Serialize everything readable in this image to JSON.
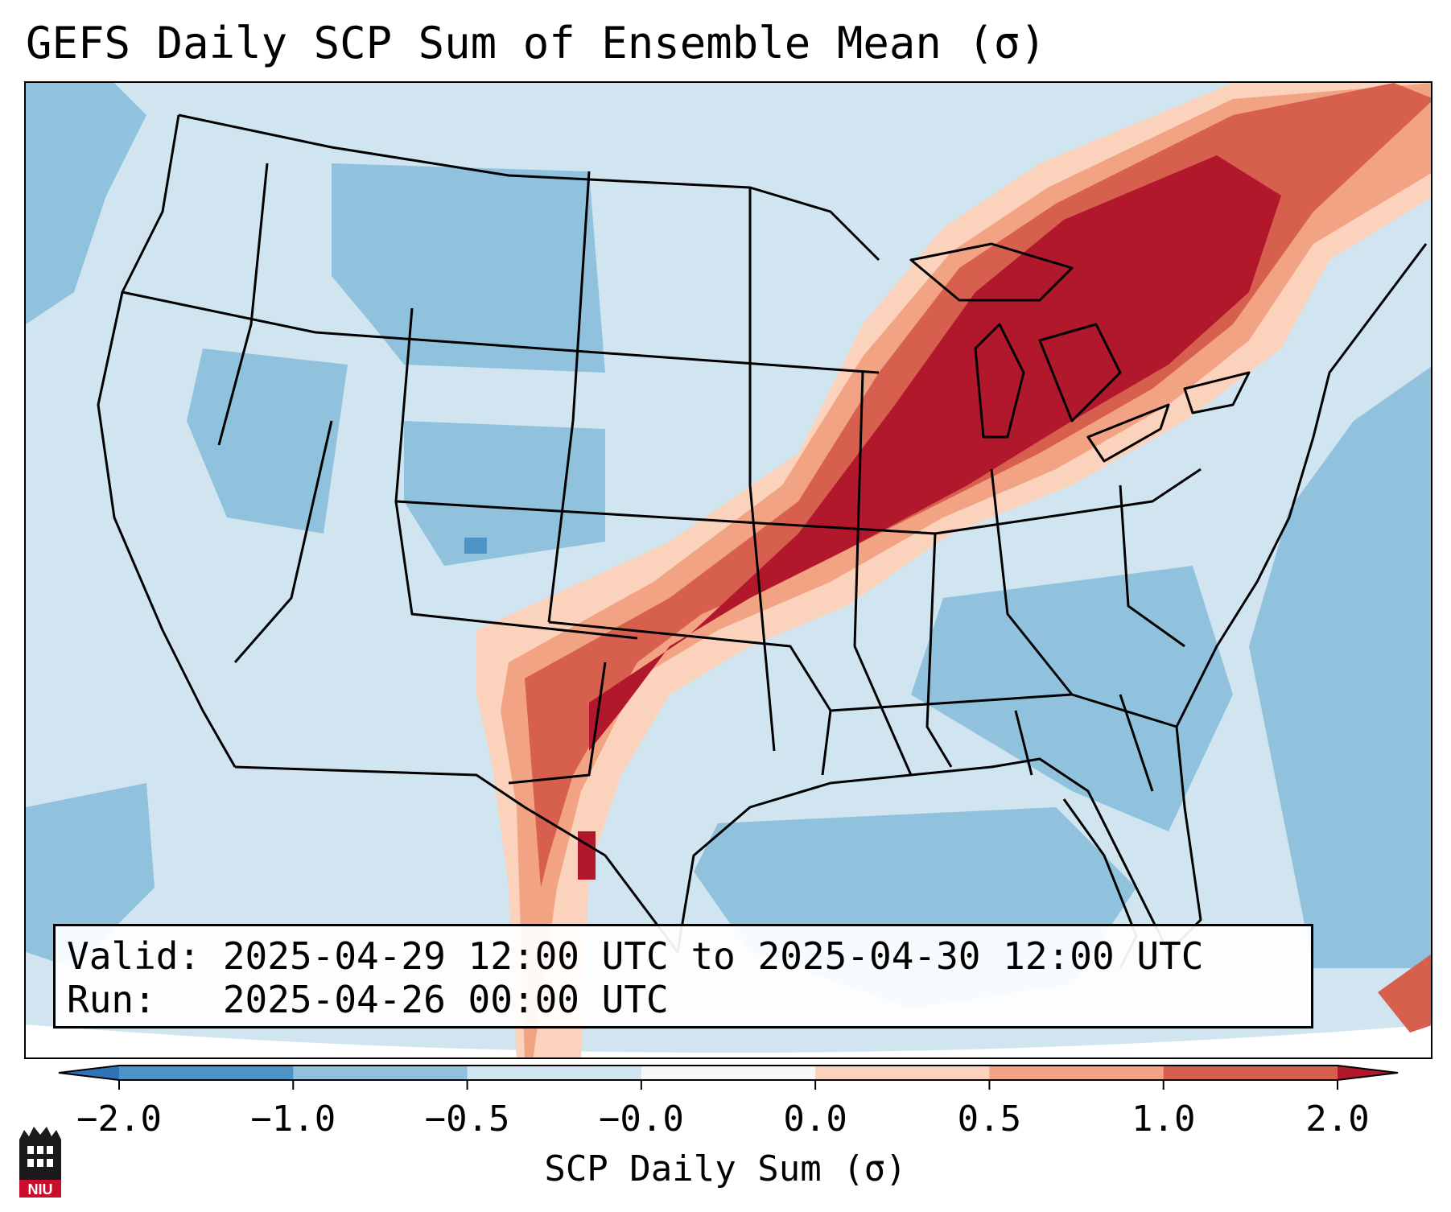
{
  "title": "GEFS Daily SCP Sum of Ensemble Mean (σ)",
  "info": {
    "valid": "Valid: 2025-04-29 12:00 UTC to 2025-04-30 12:00 UTC",
    "run": "Run:   2025-04-26 00:00 UTC"
  },
  "colorbar": {
    "label": "SCP Daily Sum (σ)",
    "ticks": [
      "−2.0",
      "−1.0",
      "−0.5",
      "−0.0",
      "0.0",
      "0.5",
      "1.0",
      "2.0"
    ],
    "bins": [
      {
        "range": "<-2.0",
        "color": "#2f72b5"
      },
      {
        "range": "-2.0 to -1.0",
        "color": "#4e93c7"
      },
      {
        "range": "-1.0 to -0.5",
        "color": "#90c2de"
      },
      {
        "range": "-0.5 to -0.0",
        "color": "#d1e5f0"
      },
      {
        "range": "-0.0 to 0.0",
        "color": "#f7f7f7"
      },
      {
        "range": "0.0 to 0.5",
        "color": "#fbd2bc"
      },
      {
        "range": "0.5 to 1.0",
        "color": "#f2a383"
      },
      {
        "range": "1.0 to 2.0",
        "color": "#d6604d"
      },
      {
        "range": ">2.0",
        "color": "#b2182b"
      }
    ],
    "extend": "both"
  },
  "map_region": "Contiguous United States",
  "logo": {
    "text": "NIU",
    "colors": {
      "dark": "#1a1a1a",
      "red": "#c8102e"
    }
  }
}
